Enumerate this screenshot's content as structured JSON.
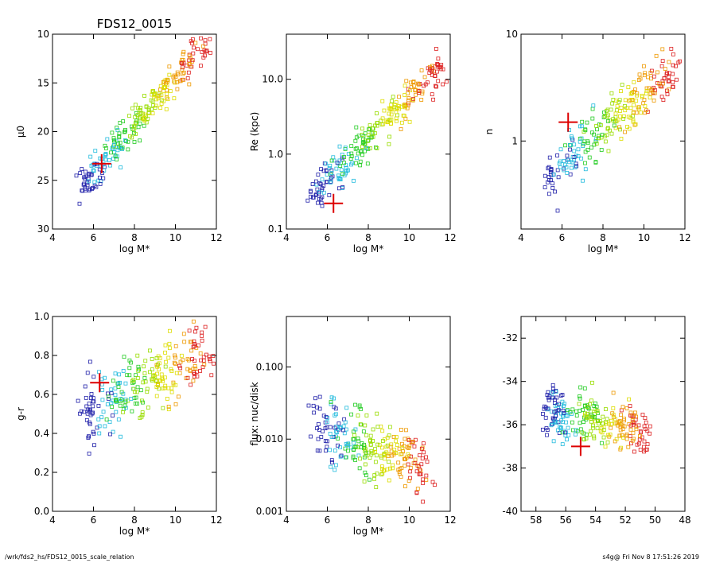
{
  "footer": {
    "left": "/wrk/fds2_hs/FDS12_0015_scale_relation",
    "right": "s4g@  Fri Nov  8 17:51:26 2019"
  },
  "colors": {
    "marker": "#dd0000",
    "palette": [
      "#2222aa",
      "#22bbdd",
      "#22cc22",
      "#99dd00",
      "#dddd00",
      "#ee9900",
      "#dd2222"
    ]
  },
  "chart_data": [
    {
      "type": "scatter",
      "title": "FDS12_0015",
      "xlabel": "log M*",
      "ylabel": "μ0",
      "xlim": [
        4,
        12
      ],
      "ylim": [
        30,
        10
      ],
      "xticks": [
        4,
        6,
        8,
        10,
        12
      ],
      "yticks": [
        10,
        15,
        20,
        25,
        30
      ],
      "marker": {
        "x": 6.4,
        "y": 23.3
      },
      "trend": {
        "x0": 5.2,
        "y0": 26.2,
        "x1": 11.6,
        "y1": 10.5,
        "scatter": 1.6
      }
    },
    {
      "type": "scatter",
      "title": "",
      "xlabel": "log M*",
      "ylabel": "Re (kpc)",
      "xlim": [
        4,
        12
      ],
      "ylim": [
        0.1,
        40
      ],
      "ylog": true,
      "xticks": [
        4,
        6,
        8,
        10,
        12
      ],
      "yticks": [
        0.1,
        1.0,
        10.0
      ],
      "yticklabels": [
        "0.1",
        "1.0",
        "10.0"
      ],
      "marker": {
        "x": 6.3,
        "y": 0.22
      },
      "trend": {
        "x0": 5.2,
        "y0": 0.28,
        "x1": 11.6,
        "y1": 15,
        "scatter": 0.45
      }
    },
    {
      "type": "scatter",
      "title": "",
      "xlabel": "log M*",
      "ylabel": "n",
      "xlim": [
        4,
        12
      ],
      "ylim": [
        0.15,
        10
      ],
      "ylog": true,
      "xticks": [
        4,
        6,
        8,
        10,
        12
      ],
      "yticks": [
        1,
        10
      ],
      "yticklabels": [
        "1",
        "10"
      ],
      "marker": {
        "x": 6.3,
        "y": 1.5
      },
      "trend": {
        "x0": 5.2,
        "y0": 0.45,
        "x1": 11.6,
        "y1": 5,
        "scatter": 0.5
      }
    },
    {
      "type": "scatter",
      "title": "",
      "xlabel": "log M*",
      "ylabel": "g-r",
      "xlim": [
        4,
        12
      ],
      "ylim": [
        0.0,
        1.0
      ],
      "xticks": [
        4,
        6,
        8,
        10,
        12
      ],
      "yticks": [
        0.0,
        0.2,
        0.4,
        0.6,
        0.8,
        1.0
      ],
      "yticklabels": [
        "0.0",
        "0.2",
        "0.4",
        "0.6",
        "0.8",
        "1.0"
      ],
      "marker": {
        "x": 6.3,
        "y": 0.66
      },
      "trend": {
        "x0": 5.6,
        "y0": 0.5,
        "x1": 11.6,
        "y1": 0.82,
        "scatter": 0.18
      }
    },
    {
      "type": "scatter",
      "title": "",
      "xlabel": "log M*",
      "ylabel": "flux: nuc/disk",
      "xlim": [
        4,
        12
      ],
      "ylim": [
        0.001,
        0.5
      ],
      "ylog": true,
      "xticks": [
        4,
        6,
        8,
        10,
        12
      ],
      "yticks": [
        0.001,
        0.01,
        0.1
      ],
      "yticklabels": [
        "0.001",
        "0.010",
        "0.100"
      ],
      "trend": {
        "x0": 5.4,
        "y0": 0.015,
        "x1": 11.0,
        "y1": 0.004,
        "scatter": 0.9
      }
    },
    {
      "type": "scatter",
      "title": "",
      "xlabel": "",
      "ylabel": "",
      "xlim": [
        59,
        48
      ],
      "ylim": [
        -40,
        -31
      ],
      "xticks": [
        58,
        56,
        54,
        52,
        50,
        48
      ],
      "yticks": [
        -32,
        -34,
        -36,
        -38,
        -40
      ],
      "marker": {
        "x": 55.0,
        "y": -37.0
      },
      "trend": {
        "x0": 57.5,
        "y0": -35.3,
        "x1": 50.5,
        "y1": -36.2,
        "scatter": 1.2
      }
    }
  ]
}
